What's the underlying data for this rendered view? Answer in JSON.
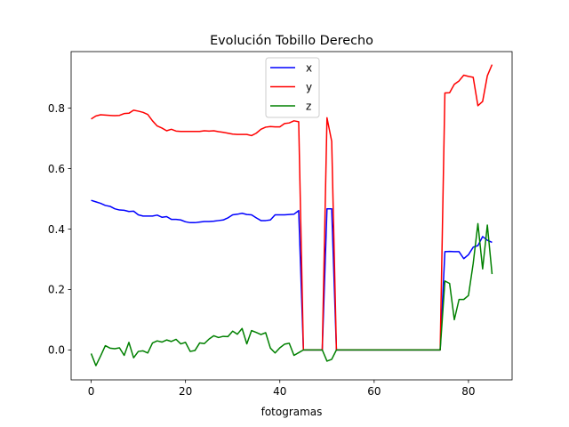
{
  "chart_data": {
    "type": "line",
    "title": "Evolución Tobillo Derecho",
    "xlabel": "fotogramas",
    "ylabel": "",
    "xlim": [
      -4.25,
      89.25
    ],
    "ylim": [
      -0.099,
      0.987
    ],
    "xticks": [
      0,
      20,
      40,
      60,
      80
    ],
    "yticks": [
      0.0,
      0.2,
      0.4,
      0.6,
      0.8
    ],
    "grid": false,
    "legend": "upper center",
    "x": [
      0,
      1,
      2,
      3,
      4,
      5,
      6,
      7,
      8,
      9,
      10,
      11,
      12,
      13,
      14,
      15,
      16,
      17,
      18,
      19,
      20,
      21,
      22,
      23,
      24,
      25,
      26,
      27,
      28,
      29,
      30,
      31,
      32,
      33,
      34,
      35,
      36,
      37,
      38,
      39,
      40,
      41,
      42,
      43,
      44,
      45,
      46,
      47,
      48,
      49,
      50,
      51,
      52,
      53,
      54,
      55,
      56,
      57,
      58,
      59,
      60,
      61,
      62,
      63,
      64,
      65,
      66,
      67,
      68,
      69,
      70,
      71,
      72,
      73,
      74,
      75,
      76,
      77,
      78,
      79,
      80,
      81,
      82,
      83,
      84,
      85
    ],
    "series": [
      {
        "name": "x",
        "color": "#0000ff",
        "values": [
          0.495,
          0.49,
          0.485,
          0.478,
          0.475,
          0.467,
          0.463,
          0.462,
          0.458,
          0.459,
          0.447,
          0.443,
          0.443,
          0.443,
          0.446,
          0.439,
          0.441,
          0.432,
          0.432,
          0.43,
          0.424,
          0.421,
          0.421,
          0.423,
          0.425,
          0.425,
          0.426,
          0.428,
          0.43,
          0.437,
          0.447,
          0.449,
          0.452,
          0.448,
          0.447,
          0.437,
          0.428,
          0.428,
          0.43,
          0.447,
          0.447,
          0.447,
          0.448,
          0.449,
          0.461,
          0,
          0,
          0,
          0,
          0,
          0.467,
          0.467,
          0,
          0,
          0,
          0,
          0,
          0,
          0,
          0,
          0,
          0,
          0,
          0,
          0,
          0,
          0,
          0,
          0,
          0,
          0,
          0,
          0,
          0,
          0,
          0.325,
          0.326,
          0.325,
          0.325,
          0.302,
          0.315,
          0.34,
          0.345,
          0.375,
          0.363,
          0.356
        ]
      },
      {
        "name": "y",
        "color": "#ff0000",
        "values": [
          0.764,
          0.774,
          0.778,
          0.777,
          0.776,
          0.775,
          0.776,
          0.782,
          0.783,
          0.793,
          0.79,
          0.786,
          0.779,
          0.758,
          0.741,
          0.734,
          0.725,
          0.73,
          0.724,
          0.723,
          0.723,
          0.723,
          0.723,
          0.723,
          0.725,
          0.724,
          0.725,
          0.722,
          0.72,
          0.717,
          0.714,
          0.713,
          0.713,
          0.713,
          0.709,
          0.717,
          0.73,
          0.737,
          0.739,
          0.738,
          0.738,
          0.749,
          0.751,
          0.758,
          0.755,
          0,
          0,
          0,
          0,
          0,
          0.768,
          0.69,
          0,
          0,
          0,
          0,
          0,
          0,
          0,
          0,
          0,
          0,
          0,
          0,
          0,
          0,
          0,
          0,
          0,
          0,
          0,
          0,
          0,
          0,
          0,
          0.85,
          0.851,
          0.879,
          0.89,
          0.909,
          0.905,
          0.902,
          0.808,
          0.822,
          0.907,
          0.944
        ]
      },
      {
        "name": "z",
        "color": "#008000",
        "values": [
          -0.012,
          -0.052,
          -0.02,
          0.014,
          0.006,
          0.004,
          0.007,
          -0.018,
          0.025,
          -0.026,
          -0.005,
          -0.003,
          -0.01,
          0.023,
          0.03,
          0.026,
          0.033,
          0.028,
          0.035,
          0.02,
          0.025,
          -0.005,
          -0.002,
          0.023,
          0.021,
          0.036,
          0.047,
          0.041,
          0.045,
          0.044,
          0.062,
          0.052,
          0.071,
          0.02,
          0.064,
          0.058,
          0.051,
          0.057,
          0.006,
          -0.01,
          0.007,
          0.019,
          0.022,
          -0.018,
          -0.009,
          0,
          0,
          0,
          0,
          0,
          -0.037,
          -0.031,
          0,
          0,
          0,
          0,
          0,
          0,
          0,
          0,
          0,
          0,
          0,
          0,
          0,
          0,
          0,
          0,
          0,
          0,
          0,
          0,
          0,
          0,
          0,
          0.228,
          0.22,
          0.1,
          0.167,
          0.167,
          0.18,
          0.286,
          0.418,
          0.268,
          0.413,
          0.251
        ]
      }
    ]
  }
}
